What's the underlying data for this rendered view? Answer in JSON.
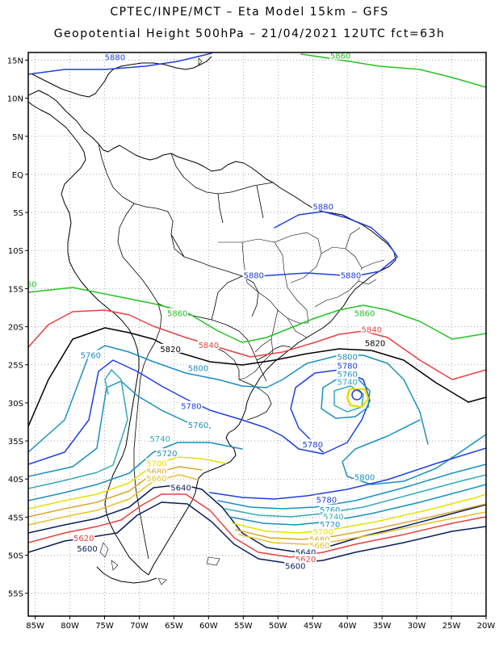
{
  "header": {
    "line1": "CPTEC/INPE/MCT –  Eta Model 15km – GFS",
    "line2": "Geopotential Height 500hPa – 21/04/2021 12UTC fct=63h"
  },
  "axes": {
    "lat_ticks": [
      "15N",
      "10N",
      "5N",
      "EQ",
      "5S",
      "10S",
      "15S",
      "20S",
      "25S",
      "30S",
      "35S",
      "40S",
      "45S",
      "50S",
      "55S"
    ],
    "lon_ticks": [
      "85W",
      "80W",
      "75W",
      "70W",
      "65W",
      "60W",
      "55W",
      "50W",
      "45W",
      "40W",
      "35W",
      "30W",
      "25W",
      "20W"
    ],
    "lon_range": [
      -86,
      -20
    ],
    "lat_range": [
      16,
      -58
    ],
    "grid": "dotted"
  },
  "chart_data": {
    "type": "contour",
    "variable": "Geopotential Height 500hPa",
    "contour_interval": 20,
    "levels": [
      {
        "value": 5880,
        "color": "#1f3fe0"
      },
      {
        "value": 5860,
        "color": "#22c422"
      },
      {
        "value": 5840,
        "color": "#e84040"
      },
      {
        "value": 5820,
        "color": "#000000"
      },
      {
        "value": 5800,
        "color": "#1a8fc0"
      },
      {
        "value": 5780,
        "color": "#1f3fe0"
      },
      {
        "value": 5760,
        "color": "#1a8fc0"
      },
      {
        "value": 5740,
        "color": "#33aab8"
      },
      {
        "value": 5720,
        "color": "#1a8fc0"
      },
      {
        "value": 5700,
        "color": "#e8e000"
      },
      {
        "value": 5680,
        "color": "#d9a830"
      },
      {
        "value": 5660,
        "color": "#e8c030"
      },
      {
        "value": 5640,
        "color": "#0a1d5c"
      },
      {
        "value": 5620,
        "color": "#e84040"
      },
      {
        "value": 5600,
        "color": "#0a1d5c"
      }
    ],
    "labels": [
      {
        "text": "5880",
        "lon": -73.5,
        "lat": 15.3
      },
      {
        "text": "5860",
        "lon": -41.0,
        "lat": 15.5
      },
      {
        "text": "5880",
        "lon": -43.5,
        "lat": -4.3
      },
      {
        "text": "5880",
        "lon": -53.5,
        "lat": -13.3
      },
      {
        "text": "5880",
        "lon": -39.5,
        "lat": -13.3
      },
      {
        "text": "60",
        "lon": -85.5,
        "lat": -14.5
      },
      {
        "text": "5860",
        "lon": -64.5,
        "lat": -18.3
      },
      {
        "text": "5860",
        "lon": -37.5,
        "lat": -18.3
      },
      {
        "text": "5840",
        "lon": -36.5,
        "lat": -20.4
      },
      {
        "text": "5840",
        "lon": -60.0,
        "lat": -22.5
      },
      {
        "text": "5820",
        "lon": -65.5,
        "lat": -23.0
      },
      {
        "text": "5820",
        "lon": -36.0,
        "lat": -22.2
      },
      {
        "text": "5760",
        "lon": -77.0,
        "lat": -23.8
      },
      {
        "text": "5800",
        "lon": -61.5,
        "lat": -25.5
      },
      {
        "text": "5800",
        "lon": -40.0,
        "lat": -24.0
      },
      {
        "text": "5780",
        "lon": -40.0,
        "lat": -25.2
      },
      {
        "text": "5760",
        "lon": -40.0,
        "lat": -26.3
      },
      {
        "text": "5740",
        "lon": -40.0,
        "lat": -27.3
      },
      {
        "text": "5780",
        "lon": -62.5,
        "lat": -30.5
      },
      {
        "text": "5760",
        "lon": -61.5,
        "lat": -33.0
      },
      {
        "text": "5740",
        "lon": -67.0,
        "lat": -34.8
      },
      {
        "text": "5720",
        "lon": -66.0,
        "lat": -36.7
      },
      {
        "text": "5700",
        "lon": -67.5,
        "lat": -38.0
      },
      {
        "text": "5680",
        "lon": -67.5,
        "lat": -39.1
      },
      {
        "text": "5660",
        "lon": -67.5,
        "lat": -40.0
      },
      {
        "text": "5640",
        "lon": -64.0,
        "lat": -41.2
      },
      {
        "text": "5780",
        "lon": -45.0,
        "lat": -35.5
      },
      {
        "text": "5800",
        "lon": -37.5,
        "lat": -39.8
      },
      {
        "text": "5780",
        "lon": -43.0,
        "lat": -42.8
      },
      {
        "text": "5760",
        "lon": -42.5,
        "lat": -44.1
      },
      {
        "text": "5740",
        "lon": -42.0,
        "lat": -45.0
      },
      {
        "text": "5720",
        "lon": -42.5,
        "lat": -46.0
      },
      {
        "text": "5700",
        "lon": -43.5,
        "lat": -47.0
      },
      {
        "text": "5680",
        "lon": -44.0,
        "lat": -48.0
      },
      {
        "text": "5660",
        "lon": -44.0,
        "lat": -48.8
      },
      {
        "text": "5640",
        "lon": -46.0,
        "lat": -49.7
      },
      {
        "text": "5620",
        "lon": -46.0,
        "lat": -50.6
      },
      {
        "text": "5600",
        "lon": -47.5,
        "lat": -51.5
      },
      {
        "text": "5620",
        "lon": -78.0,
        "lat": -47.8
      },
      {
        "text": "5600",
        "lon": -77.5,
        "lat": -49.2
      }
    ]
  }
}
